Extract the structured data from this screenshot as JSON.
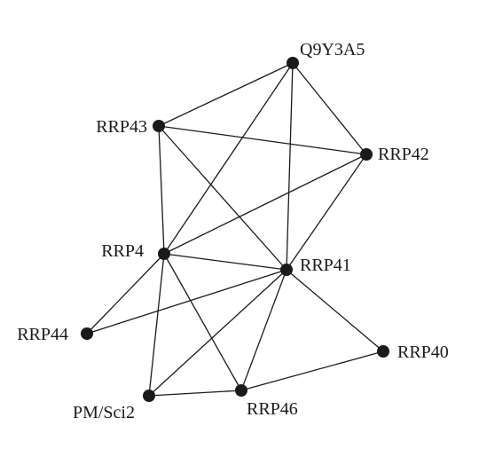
{
  "diagram": {
    "nodes": [
      {
        "id": "Q9Y3A5",
        "label": "Q9Y3A5"
      },
      {
        "id": "RRP43",
        "label": "RRP43"
      },
      {
        "id": "RRP42",
        "label": "RRP42"
      },
      {
        "id": "RRP4",
        "label": "RRP4"
      },
      {
        "id": "RRP41",
        "label": "RRP41"
      },
      {
        "id": "RRP44",
        "label": "RRP44"
      },
      {
        "id": "RRP40",
        "label": "RRP40"
      },
      {
        "id": "PMSci2",
        "label": "PM/Sci2"
      },
      {
        "id": "RRP46",
        "label": "RRP46"
      }
    ],
    "edges": [
      [
        "Q9Y3A5",
        "RRP43"
      ],
      [
        "Q9Y3A5",
        "RRP42"
      ],
      [
        "Q9Y3A5",
        "RRP4"
      ],
      [
        "Q9Y3A5",
        "RRP41"
      ],
      [
        "RRP43",
        "RRP42"
      ],
      [
        "RRP43",
        "RRP4"
      ],
      [
        "RRP43",
        "RRP41"
      ],
      [
        "RRP42",
        "RRP4"
      ],
      [
        "RRP42",
        "RRP41"
      ],
      [
        "RRP4",
        "RRP41"
      ],
      [
        "RRP4",
        "RRP44"
      ],
      [
        "RRP4",
        "PMSci2"
      ],
      [
        "RRP4",
        "RRP46"
      ],
      [
        "RRP41",
        "RRP44"
      ],
      [
        "RRP41",
        "RRP40"
      ],
      [
        "RRP41",
        "PMSci2"
      ],
      [
        "RRP41",
        "RRP46"
      ],
      [
        "PMSci2",
        "RRP46"
      ],
      [
        "RRP46",
        "RRP40"
      ]
    ]
  }
}
